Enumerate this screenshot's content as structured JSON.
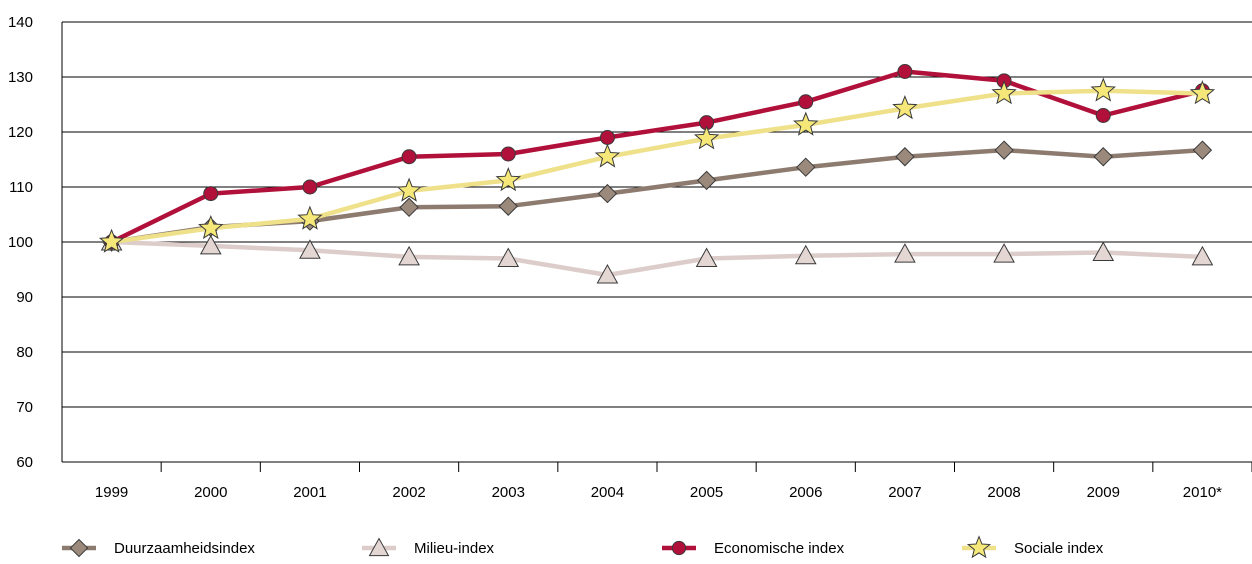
{
  "chart_data": {
    "type": "line",
    "title": "",
    "xlabel": "",
    "ylabel": "",
    "categories": [
      "1999",
      "2000",
      "2001",
      "2002",
      "2003",
      "2004",
      "2005",
      "2006",
      "2007",
      "2008",
      "2009",
      "2010*"
    ],
    "ylim": [
      60,
      140
    ],
    "yticks": [
      60,
      70,
      80,
      90,
      100,
      110,
      120,
      130,
      140
    ],
    "grid": true,
    "legend_position": "bottom",
    "series": [
      {
        "name": "Duurzaamheidsindex",
        "marker": "diamond",
        "line_color": "#8c7b6e",
        "marker_fill": "#9b8a7c",
        "values": [
          100,
          102.7,
          103.8,
          106.3,
          106.5,
          108.8,
          111.2,
          113.6,
          115.5,
          116.7,
          115.5,
          116.7
        ]
      },
      {
        "name": "Milieu-index",
        "marker": "triangle",
        "line_color": "#dccdca",
        "marker_fill": "#e3d6d3",
        "values": [
          100,
          99.3,
          98.5,
          97.3,
          97,
          94,
          97,
          97.5,
          97.8,
          97.8,
          98.1,
          97.3
        ]
      },
      {
        "name": "Economische index",
        "marker": "circle",
        "line_color": "#b0103a",
        "marker_fill": "#b0103a",
        "values": [
          100,
          108.8,
          110,
          115.5,
          116,
          119,
          121.7,
          125.5,
          131,
          129.3,
          123,
          127.5
        ]
      },
      {
        "name": "Sociale index",
        "marker": "star",
        "line_color": "#efe08a",
        "marker_fill": "#f5e878",
        "values": [
          100,
          102.5,
          104.2,
          109.3,
          111.2,
          115.5,
          118.8,
          121.3,
          124.3,
          127,
          127.5,
          127
        ]
      }
    ]
  }
}
